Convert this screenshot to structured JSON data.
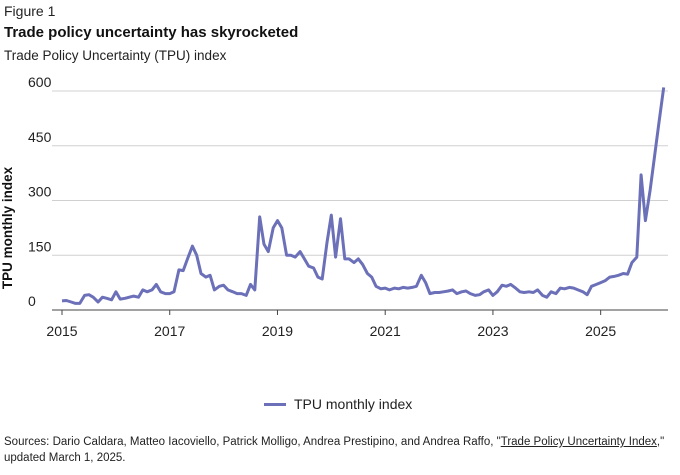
{
  "figure_label": "Figure 1",
  "colors": {
    "line": "#6b70b8",
    "grid": "#d0d0d0",
    "axis": "#444444"
  },
  "chart_data": {
    "type": "line",
    "title": "Trade policy uncertainty has skyrocketed",
    "subtitle": "Trade Policy Uncertainty (TPU) index",
    "xlabel": "",
    "ylabel": "TPU monthly index",
    "xlim": [
      2015.0,
      2026.25
    ],
    "ylim": [
      0,
      600
    ],
    "yticks": [
      0,
      150,
      300,
      450,
      600
    ],
    "xticks": [
      2015,
      2017,
      2019,
      2021,
      2023,
      2025
    ],
    "grid": "horizontal",
    "legend_position": "bottom-center",
    "series": [
      {
        "name": "TPU monthly index",
        "points": [
          [
            2015.0,
            25
          ],
          [
            2015.08,
            26
          ],
          [
            2015.17,
            22
          ],
          [
            2015.25,
            18
          ],
          [
            2015.33,
            18
          ],
          [
            2015.42,
            40
          ],
          [
            2015.5,
            42
          ],
          [
            2015.58,
            35
          ],
          [
            2015.67,
            22
          ],
          [
            2015.75,
            35
          ],
          [
            2015.83,
            32
          ],
          [
            2015.92,
            28
          ],
          [
            2016.0,
            50
          ],
          [
            2016.08,
            30
          ],
          [
            2016.17,
            32
          ],
          [
            2016.25,
            35
          ],
          [
            2016.33,
            38
          ],
          [
            2016.42,
            35
          ],
          [
            2016.5,
            55
          ],
          [
            2016.58,
            50
          ],
          [
            2016.67,
            55
          ],
          [
            2016.75,
            70
          ],
          [
            2016.83,
            50
          ],
          [
            2016.92,
            45
          ],
          [
            2017.0,
            45
          ],
          [
            2017.08,
            50
          ],
          [
            2017.17,
            110
          ],
          [
            2017.25,
            108
          ],
          [
            2017.33,
            140
          ],
          [
            2017.42,
            175
          ],
          [
            2017.5,
            150
          ],
          [
            2017.58,
            100
          ],
          [
            2017.67,
            90
          ],
          [
            2017.75,
            95
          ],
          [
            2017.83,
            55
          ],
          [
            2017.92,
            65
          ],
          [
            2018.0,
            68
          ],
          [
            2018.08,
            55
          ],
          [
            2018.17,
            50
          ],
          [
            2018.25,
            45
          ],
          [
            2018.33,
            45
          ],
          [
            2018.42,
            40
          ],
          [
            2018.5,
            70
          ],
          [
            2018.58,
            55
          ],
          [
            2018.67,
            255
          ],
          [
            2018.75,
            180
          ],
          [
            2018.83,
            160
          ],
          [
            2018.92,
            225
          ],
          [
            2019.0,
            245
          ],
          [
            2019.08,
            225
          ],
          [
            2019.17,
            150
          ],
          [
            2019.25,
            150
          ],
          [
            2019.33,
            145
          ],
          [
            2019.42,
            160
          ],
          [
            2019.5,
            140
          ],
          [
            2019.58,
            120
          ],
          [
            2019.67,
            115
          ],
          [
            2019.75,
            90
          ],
          [
            2019.83,
            85
          ],
          [
            2019.92,
            185
          ],
          [
            2020.0,
            260
          ],
          [
            2020.08,
            145
          ],
          [
            2020.17,
            250
          ],
          [
            2020.25,
            140
          ],
          [
            2020.33,
            140
          ],
          [
            2020.42,
            130
          ],
          [
            2020.5,
            140
          ],
          [
            2020.58,
            125
          ],
          [
            2020.67,
            100
          ],
          [
            2020.75,
            90
          ],
          [
            2020.83,
            65
          ],
          [
            2020.92,
            58
          ],
          [
            2021.0,
            60
          ],
          [
            2021.08,
            55
          ],
          [
            2021.17,
            60
          ],
          [
            2021.25,
            58
          ],
          [
            2021.33,
            62
          ],
          [
            2021.42,
            60
          ],
          [
            2021.5,
            62
          ],
          [
            2021.58,
            65
          ],
          [
            2021.67,
            95
          ],
          [
            2021.75,
            75
          ],
          [
            2021.83,
            45
          ],
          [
            2021.92,
            48
          ],
          [
            2022.0,
            48
          ],
          [
            2022.08,
            50
          ],
          [
            2022.17,
            52
          ],
          [
            2022.25,
            55
          ],
          [
            2022.33,
            45
          ],
          [
            2022.42,
            50
          ],
          [
            2022.5,
            52
          ],
          [
            2022.58,
            45
          ],
          [
            2022.67,
            40
          ],
          [
            2022.75,
            42
          ],
          [
            2022.83,
            50
          ],
          [
            2022.92,
            55
          ],
          [
            2023.0,
            40
          ],
          [
            2023.08,
            50
          ],
          [
            2023.17,
            68
          ],
          [
            2023.25,
            65
          ],
          [
            2023.33,
            70
          ],
          [
            2023.42,
            60
          ],
          [
            2023.5,
            50
          ],
          [
            2023.58,
            48
          ],
          [
            2023.67,
            50
          ],
          [
            2023.75,
            48
          ],
          [
            2023.83,
            55
          ],
          [
            2023.92,
            40
          ],
          [
            2024.0,
            35
          ],
          [
            2024.08,
            50
          ],
          [
            2024.17,
            45
          ],
          [
            2024.25,
            60
          ],
          [
            2024.33,
            58
          ],
          [
            2024.42,
            62
          ],
          [
            2024.5,
            60
          ],
          [
            2024.58,
            55
          ],
          [
            2024.67,
            50
          ],
          [
            2024.75,
            42
          ],
          [
            2024.83,
            65
          ],
          [
            2024.92,
            70
          ],
          [
            2025.0,
            75
          ],
          [
            2025.08,
            80
          ],
          [
            2025.17,
            90
          ],
          [
            2025.25,
            92
          ],
          [
            2025.33,
            95
          ],
          [
            2025.42,
            100
          ],
          [
            2025.5,
            98
          ],
          [
            2025.58,
            130
          ],
          [
            2025.67,
            145
          ],
          [
            2025.75,
            370
          ],
          [
            2025.83,
            245
          ],
          [
            2025.92,
            330
          ],
          [
            2026.0,
            420
          ],
          [
            2026.08,
            510
          ],
          [
            2026.17,
            610
          ]
        ]
      }
    ]
  },
  "source": {
    "prefix": "Sources: Dario Caldara, Matteo Iacoviello, Patrick Molligo, Andrea Prestipino, and Andrea Raffo, \"",
    "link_text": "Trade Policy Uncertainty Index",
    "suffix": ",\" updated March 1, 2025."
  }
}
